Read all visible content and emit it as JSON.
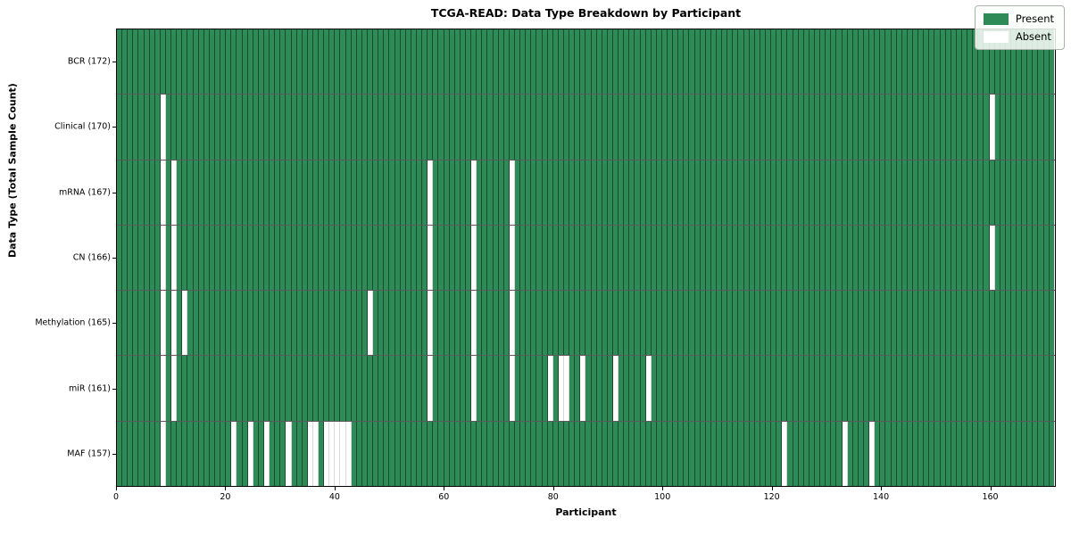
{
  "chart_data": {
    "type": "heatmap",
    "title": "TCGA-READ: Data Type Breakdown by Participant",
    "xlabel": "Participant",
    "ylabel": "Data Type (Total Sample Count)",
    "n_participants": 172,
    "x_ticks": [
      0,
      20,
      40,
      60,
      80,
      100,
      120,
      140,
      160
    ],
    "legend_position": "upper right",
    "grid": true,
    "colors": {
      "present": "#2e8b57",
      "absent": "#ffffff"
    },
    "legend": [
      {
        "label": "Present",
        "color": "#2e8b57"
      },
      {
        "label": "Absent",
        "color": "#ffffff"
      }
    ],
    "rows": [
      {
        "label": "BCR (172)",
        "data_type": "BCR",
        "total_sample_count": 172,
        "absent_participants": []
      },
      {
        "label": "Clinical (170)",
        "data_type": "Clinical",
        "total_sample_count": 170,
        "absent_participants": [
          8,
          160
        ]
      },
      {
        "label": "mRNA (167)",
        "data_type": "mRNA",
        "total_sample_count": 167,
        "absent_participants": [
          8,
          10,
          57,
          65,
          72
        ]
      },
      {
        "label": "CN (166)",
        "data_type": "CN",
        "total_sample_count": 166,
        "absent_participants": [
          8,
          10,
          57,
          65,
          72,
          160
        ]
      },
      {
        "label": "Methylation (165)",
        "data_type": "Methylation",
        "total_sample_count": 165,
        "absent_participants": [
          8,
          10,
          12,
          46,
          57,
          65,
          72
        ]
      },
      {
        "label": "miR (161)",
        "data_type": "miR",
        "total_sample_count": 161,
        "absent_participants": [
          8,
          10,
          57,
          65,
          72,
          79,
          81,
          82,
          85,
          91,
          97
        ]
      },
      {
        "label": "MAF (157)",
        "data_type": "MAF",
        "total_sample_count": 157,
        "absent_participants": [
          8,
          21,
          24,
          27,
          31,
          35,
          36,
          38,
          39,
          40,
          41,
          42,
          122,
          133,
          138
        ]
      }
    ]
  }
}
